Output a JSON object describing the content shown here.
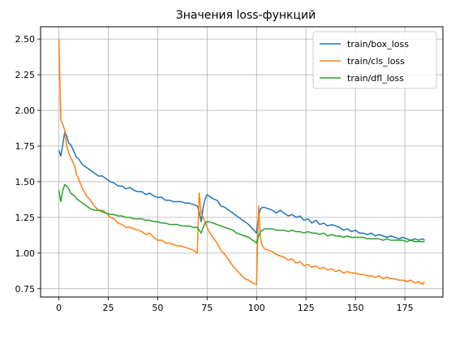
{
  "chart_data": {
    "type": "line",
    "title": "Значения loss-функций",
    "xlabel": "",
    "ylabel": "",
    "xlim": [
      -9.25,
      194.25
    ],
    "ylim": [
      0.692,
      2.586
    ],
    "xticks": [
      0,
      25,
      50,
      75,
      100,
      125,
      150,
      175
    ],
    "yticks": [
      0.75,
      1.0,
      1.25,
      1.5,
      1.75,
      2.0,
      2.25,
      2.5
    ],
    "ytick_labels": [
      "0.75",
      "1.00",
      "1.25",
      "1.50",
      "1.75",
      "2.00",
      "2.25",
      "2.50"
    ],
    "grid": true,
    "legend_position": "upper right",
    "series": [
      {
        "name": "train/box_loss",
        "color": "#1f77b4",
        "x": [
          0,
          1,
          2,
          3,
          4,
          5,
          6,
          7,
          8,
          9,
          10,
          12,
          14,
          16,
          18,
          20,
          22,
          24,
          26,
          28,
          30,
          32,
          34,
          36,
          38,
          40,
          42,
          44,
          46,
          48,
          50,
          52,
          54,
          56,
          58,
          60,
          62,
          64,
          66,
          68,
          70,
          71,
          72,
          73,
          74,
          75,
          76,
          78,
          80,
          82,
          84,
          86,
          88,
          90,
          92,
          94,
          96,
          98,
          100,
          101,
          102,
          103,
          104,
          106,
          108,
          110,
          112,
          114,
          116,
          118,
          120,
          122,
          124,
          126,
          128,
          130,
          132,
          134,
          136,
          138,
          140,
          142,
          144,
          146,
          148,
          150,
          152,
          154,
          156,
          158,
          160,
          162,
          164,
          166,
          168,
          170,
          172,
          174,
          176,
          178,
          180,
          182,
          184,
          185
        ],
        "y": [
          1.72,
          1.68,
          1.76,
          1.85,
          1.82,
          1.77,
          1.76,
          1.73,
          1.7,
          1.67,
          1.66,
          1.62,
          1.6,
          1.58,
          1.56,
          1.54,
          1.54,
          1.52,
          1.5,
          1.49,
          1.47,
          1.47,
          1.45,
          1.46,
          1.44,
          1.43,
          1.43,
          1.41,
          1.42,
          1.4,
          1.39,
          1.39,
          1.37,
          1.37,
          1.36,
          1.36,
          1.36,
          1.35,
          1.35,
          1.34,
          1.33,
          1.29,
          1.22,
          1.32,
          1.38,
          1.41,
          1.4,
          1.38,
          1.37,
          1.33,
          1.32,
          1.3,
          1.28,
          1.26,
          1.24,
          1.22,
          1.2,
          1.17,
          1.14,
          1.26,
          1.31,
          1.32,
          1.32,
          1.31,
          1.3,
          1.28,
          1.3,
          1.28,
          1.26,
          1.27,
          1.25,
          1.26,
          1.23,
          1.24,
          1.21,
          1.23,
          1.2,
          1.21,
          1.19,
          1.2,
          1.19,
          1.18,
          1.16,
          1.17,
          1.15,
          1.16,
          1.14,
          1.14,
          1.13,
          1.14,
          1.12,
          1.13,
          1.12,
          1.11,
          1.12,
          1.11,
          1.1,
          1.11,
          1.1,
          1.09,
          1.1,
          1.09,
          1.1,
          1.09
        ]
      },
      {
        "name": "train/cls_loss",
        "color": "#ff7f0e",
        "x": [
          0,
          1,
          2,
          3,
          4,
          5,
          6,
          7,
          8,
          9,
          10,
          12,
          14,
          16,
          18,
          20,
          22,
          24,
          26,
          28,
          30,
          32,
          34,
          36,
          38,
          40,
          42,
          44,
          46,
          48,
          50,
          52,
          54,
          56,
          58,
          60,
          62,
          64,
          66,
          68,
          70,
          71,
          72,
          73,
          74,
          75,
          76,
          78,
          80,
          82,
          84,
          86,
          88,
          90,
          92,
          94,
          96,
          98,
          100,
          101,
          102,
          103,
          104,
          106,
          108,
          110,
          112,
          114,
          116,
          118,
          120,
          122,
          124,
          126,
          128,
          130,
          132,
          134,
          136,
          138,
          140,
          142,
          144,
          146,
          148,
          150,
          152,
          154,
          156,
          158,
          160,
          162,
          164,
          166,
          168,
          170,
          172,
          174,
          176,
          178,
          180,
          182,
          184,
          185
        ],
        "y": [
          2.5,
          1.93,
          1.9,
          1.86,
          1.75,
          1.7,
          1.67,
          1.64,
          1.61,
          1.55,
          1.52,
          1.45,
          1.4,
          1.37,
          1.33,
          1.3,
          1.3,
          1.28,
          1.25,
          1.24,
          1.21,
          1.2,
          1.18,
          1.18,
          1.17,
          1.16,
          1.15,
          1.13,
          1.14,
          1.11,
          1.09,
          1.09,
          1.07,
          1.07,
          1.06,
          1.05,
          1.05,
          1.04,
          1.03,
          1.02,
          1.0,
          1.42,
          1.28,
          1.25,
          1.22,
          1.18,
          1.15,
          1.11,
          1.07,
          1.02,
          0.99,
          0.95,
          0.91,
          0.88,
          0.85,
          0.82,
          0.81,
          0.79,
          0.78,
          1.33,
          1.1,
          1.05,
          1.03,
          1.02,
          1.01,
          0.99,
          0.98,
          0.97,
          0.95,
          0.96,
          0.93,
          0.94,
          0.91,
          0.92,
          0.9,
          0.91,
          0.89,
          0.9,
          0.88,
          0.89,
          0.87,
          0.88,
          0.86,
          0.87,
          0.86,
          0.86,
          0.85,
          0.85,
          0.84,
          0.84,
          0.83,
          0.84,
          0.82,
          0.83,
          0.82,
          0.82,
          0.81,
          0.81,
          0.8,
          0.81,
          0.79,
          0.8,
          0.78,
          0.8
        ]
      },
      {
        "name": "train/dfl_loss",
        "color": "#2ca02c",
        "x": [
          0,
          1,
          2,
          3,
          4,
          5,
          6,
          7,
          8,
          9,
          10,
          12,
          14,
          16,
          18,
          20,
          22,
          24,
          26,
          28,
          30,
          32,
          34,
          36,
          38,
          40,
          42,
          44,
          46,
          48,
          50,
          52,
          54,
          56,
          58,
          60,
          62,
          64,
          66,
          68,
          70,
          71,
          72,
          73,
          74,
          75,
          76,
          78,
          80,
          82,
          84,
          86,
          88,
          90,
          92,
          94,
          96,
          98,
          100,
          101,
          102,
          103,
          104,
          106,
          108,
          110,
          112,
          114,
          116,
          118,
          120,
          122,
          124,
          126,
          128,
          130,
          132,
          134,
          136,
          138,
          140,
          142,
          144,
          146,
          148,
          150,
          152,
          154,
          156,
          158,
          160,
          162,
          164,
          166,
          168,
          170,
          172,
          174,
          176,
          178,
          180,
          182,
          184,
          185
        ],
        "y": [
          1.44,
          1.36,
          1.44,
          1.48,
          1.47,
          1.45,
          1.42,
          1.41,
          1.4,
          1.38,
          1.37,
          1.35,
          1.33,
          1.31,
          1.3,
          1.3,
          1.29,
          1.28,
          1.27,
          1.27,
          1.26,
          1.26,
          1.25,
          1.25,
          1.24,
          1.24,
          1.24,
          1.23,
          1.23,
          1.22,
          1.22,
          1.21,
          1.21,
          1.2,
          1.2,
          1.2,
          1.19,
          1.19,
          1.19,
          1.18,
          1.18,
          1.16,
          1.14,
          1.18,
          1.21,
          1.22,
          1.22,
          1.21,
          1.2,
          1.19,
          1.18,
          1.17,
          1.16,
          1.14,
          1.13,
          1.12,
          1.11,
          1.09,
          1.07,
          1.12,
          1.15,
          1.16,
          1.17,
          1.17,
          1.17,
          1.16,
          1.16,
          1.16,
          1.15,
          1.16,
          1.15,
          1.15,
          1.14,
          1.15,
          1.14,
          1.14,
          1.13,
          1.14,
          1.12,
          1.13,
          1.12,
          1.12,
          1.11,
          1.12,
          1.11,
          1.11,
          1.11,
          1.11,
          1.1,
          1.1,
          1.1,
          1.1,
          1.09,
          1.1,
          1.09,
          1.09,
          1.09,
          1.09,
          1.08,
          1.09,
          1.08,
          1.08,
          1.08,
          1.08
        ]
      }
    ]
  }
}
